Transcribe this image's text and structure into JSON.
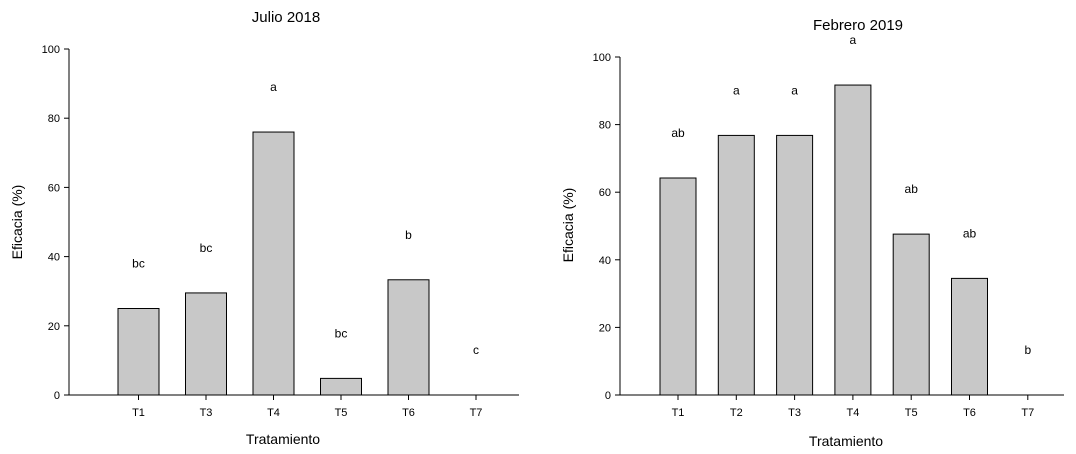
{
  "chart_data": [
    {
      "type": "bar",
      "title": "Julio 2018",
      "xlabel": "Tratamiento",
      "ylabel": "Eficacia (%)",
      "ylim": [
        0,
        100
      ],
      "yticks": [
        0,
        20,
        40,
        60,
        80,
        100
      ],
      "categories": [
        "T1",
        "T3",
        "T4",
        "T5",
        "T6",
        "T7"
      ],
      "values": [
        25,
        29.5,
        76,
        4.8,
        33.3,
        0
      ],
      "significance_letters": [
        "bc",
        "bc",
        "a",
        "bc",
        "b",
        "c"
      ],
      "bar_color": "#c8c8c8",
      "grid": false,
      "legend": "none"
    },
    {
      "type": "bar",
      "title": "Febrero 2019",
      "xlabel": "Tratamiento",
      "ylabel": "Eficacia (%)",
      "ylim": [
        0,
        100
      ],
      "yticks": [
        0,
        20,
        40,
        60,
        80,
        100
      ],
      "categories": [
        "T1",
        "T2",
        "T3",
        "T4",
        "T5",
        "T6",
        "T7"
      ],
      "values": [
        64.2,
        76.8,
        76.8,
        91.7,
        47.6,
        34.5,
        0
      ],
      "significance_letters": [
        "ab",
        "a",
        "a",
        "a",
        "ab",
        "ab",
        "b"
      ],
      "bar_color": "#c8c8c8",
      "grid": false,
      "legend": "none"
    }
  ]
}
